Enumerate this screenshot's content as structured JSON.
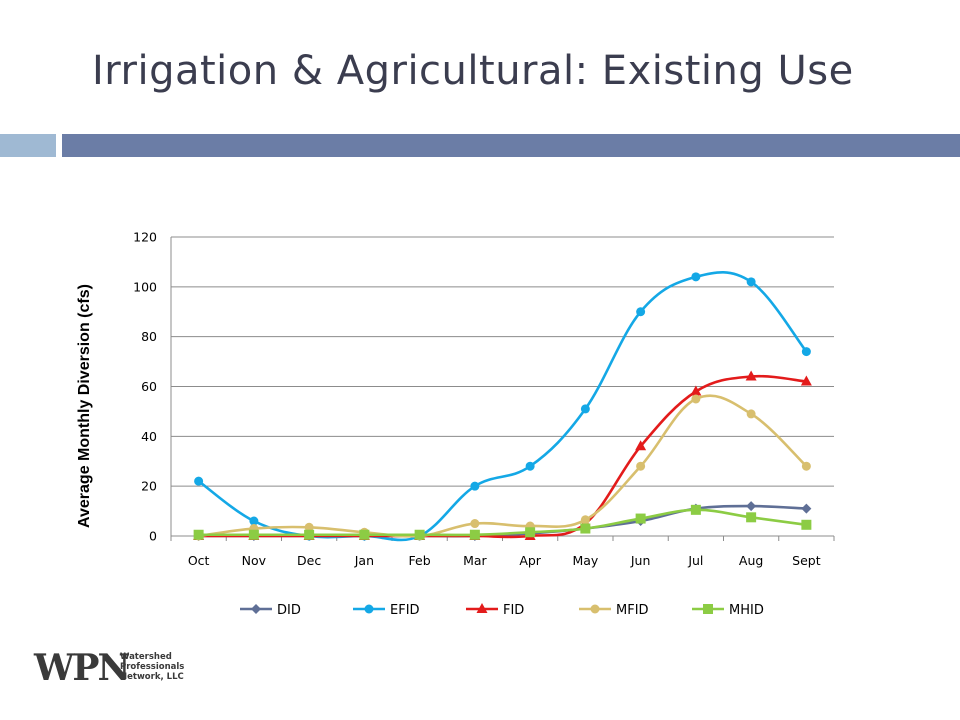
{
  "slide": {
    "title": "Irrigation & Agricultural: Existing Use"
  },
  "logo": {
    "mark": "WPN",
    "line1": "Watershed",
    "line2": "Professionals",
    "line3": "Network, LLC"
  },
  "colors": {
    "title_bar_light": "#9fb9d3",
    "title_bar_dark": "#6b7da6",
    "gridline": "#8c8c8c"
  },
  "chart_data": {
    "type": "line",
    "title": "",
    "xlabel": "",
    "ylabel": "Average Monthly Diversion  (cfs)",
    "categories": [
      "Oct",
      "Nov",
      "Dec",
      "Jan",
      "Feb",
      "Mar",
      "Apr",
      "May",
      "Jun",
      "Jul",
      "Aug",
      "Sept"
    ],
    "ylim": [
      0,
      120
    ],
    "yticks": [
      0,
      20,
      40,
      60,
      80,
      100,
      120
    ],
    "grid": true,
    "smooth": true,
    "legend_position": "bottom",
    "series": [
      {
        "name": "DID",
        "color": "#5f6f96",
        "marker": "diamond",
        "values": [
          0,
          0,
          0,
          0,
          0,
          0,
          1,
          3,
          6,
          11,
          12,
          11
        ]
      },
      {
        "name": "EFID",
        "color": "#14a8e6",
        "marker": "circle",
        "values": [
          22,
          6,
          0,
          0,
          0,
          20,
          28,
          51,
          90,
          104,
          102,
          74
        ]
      },
      {
        "name": "FID",
        "color": "#e31b1b",
        "marker": "triangle",
        "values": [
          0,
          0,
          0,
          0,
          0,
          0,
          0,
          5,
          36,
          58,
          64,
          62
        ]
      },
      {
        "name": "MFID",
        "color": "#d8bf6e",
        "marker": "circle",
        "values": [
          0,
          3,
          3.5,
          1.5,
          0,
          5,
          4,
          6.5,
          28,
          55,
          49,
          28
        ]
      },
      {
        "name": "MHID",
        "color": "#8ccc44",
        "marker": "square",
        "values": [
          0.5,
          0.5,
          0.5,
          0.5,
          0.5,
          0.5,
          1.5,
          3,
          7,
          10.5,
          7.5,
          4.5
        ]
      }
    ]
  }
}
